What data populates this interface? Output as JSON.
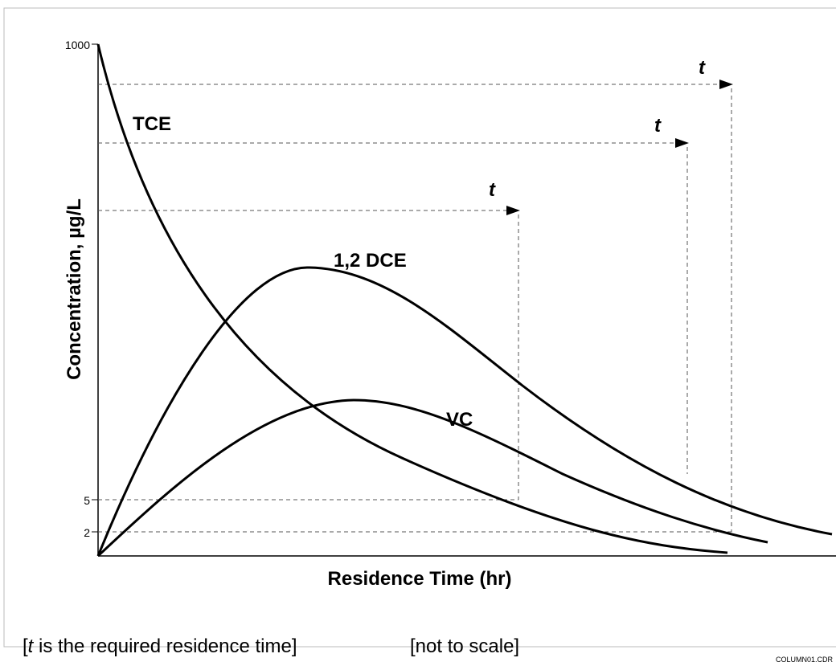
{
  "axes": {
    "y_label": "Concentration, µg/L",
    "x_label": "Residence Time (hr)",
    "y_tick_labels": [
      "1000",
      "5",
      "2"
    ]
  },
  "curves": {
    "tce": "TCE",
    "dce": "1,2 DCE",
    "vc": "VC"
  },
  "time_labels": [
    "t",
    "t",
    "t"
  ],
  "caption": {
    "open": "[",
    "t": "t",
    "rest": " is the required residence time]",
    "note": "[not to scale]"
  },
  "file_label": "COLUMN01.CDR"
}
